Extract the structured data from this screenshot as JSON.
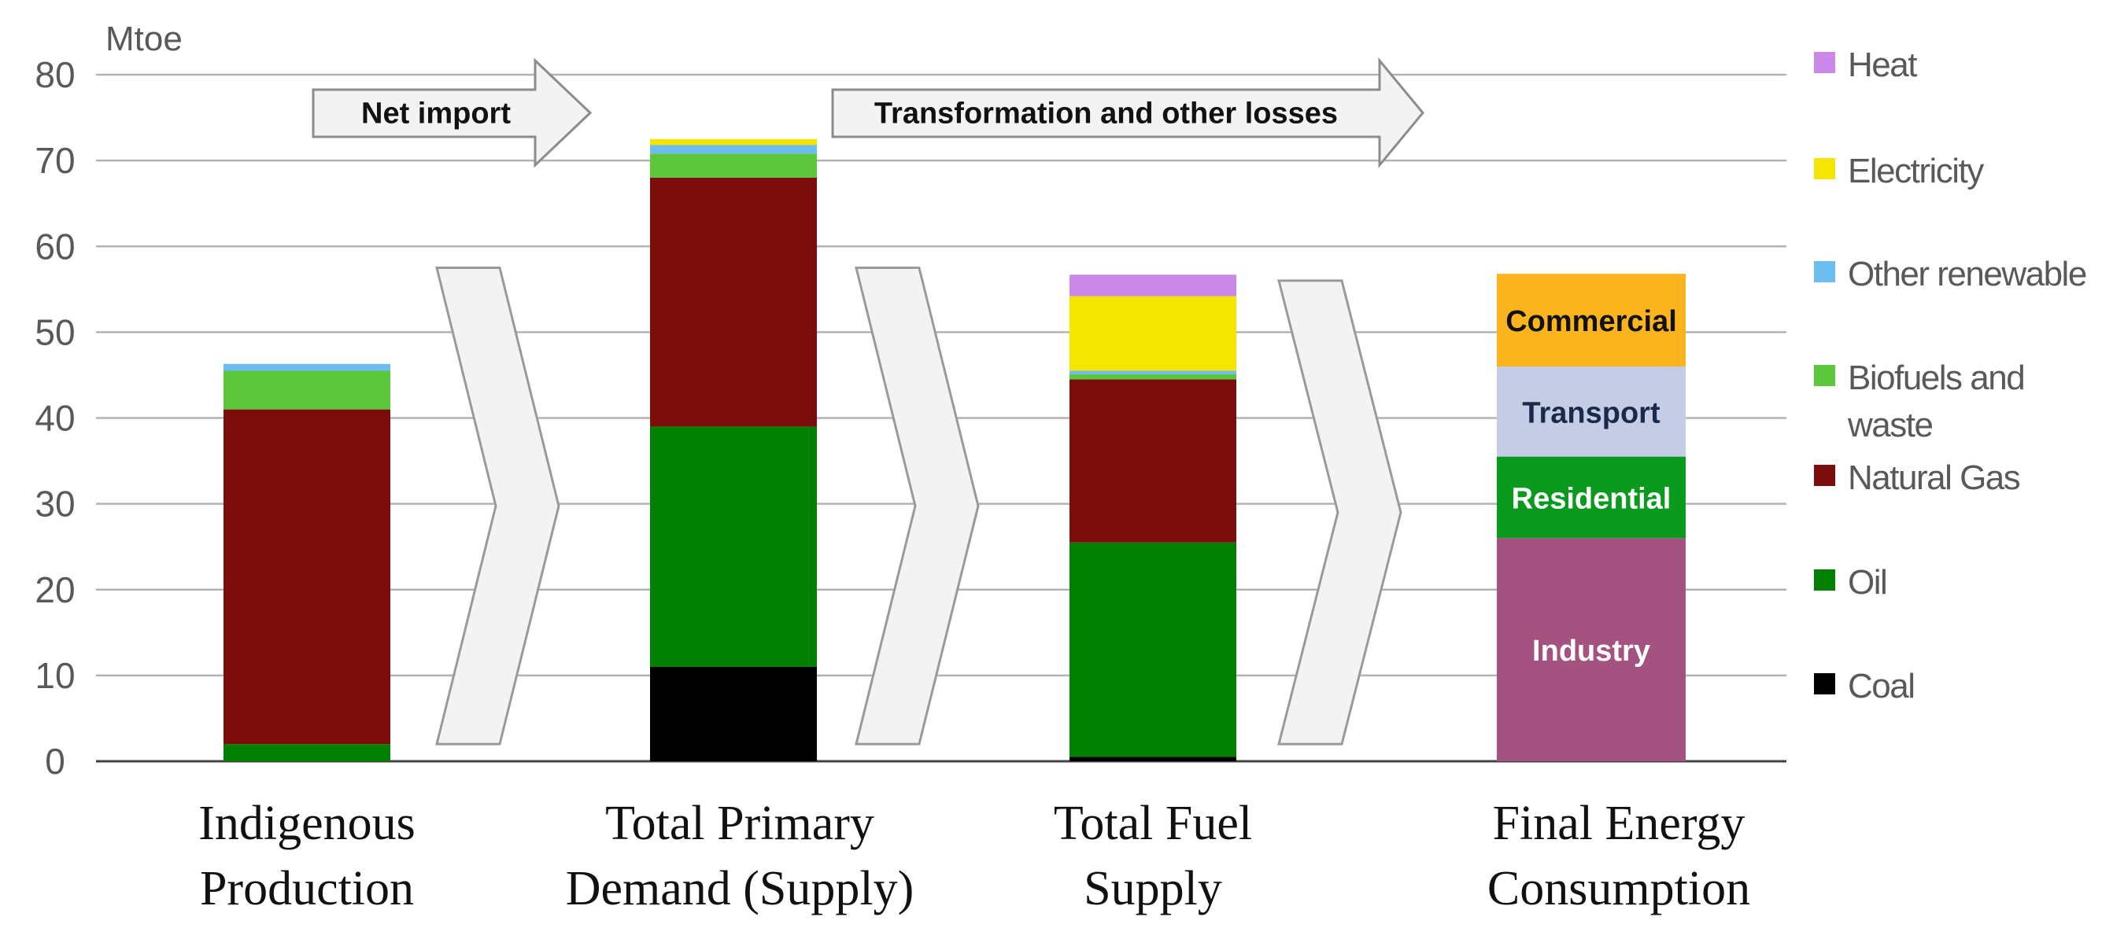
{
  "chart_data": {
    "type": "bar",
    "stacked": true,
    "unit_label": "Mtoe",
    "ylim": [
      0,
      80
    ],
    "yticks": [
      0,
      10,
      20,
      30,
      40,
      50,
      60,
      70,
      80
    ],
    "grid": true,
    "legend_position": "right",
    "categories": [
      [
        "Indigenous",
        "Production"
      ],
      [
        "Total Primary",
        "Demand (Supply)"
      ],
      [
        "Total Fuel",
        "Supply"
      ],
      [
        "Final Energy",
        "Consumption"
      ]
    ],
    "series": [
      {
        "name": "Coal",
        "color": "#000000",
        "values": [
          0,
          11,
          0.5,
          0
        ]
      },
      {
        "name": "Oil",
        "color": "#007f00",
        "values": [
          2,
          28,
          25,
          0
        ]
      },
      {
        "name": "Natural Gas",
        "color": "#7b0d0d",
        "values": [
          39,
          29,
          19,
          0
        ]
      },
      {
        "name": "Biofuels and waste",
        "color": "#5cc63d",
        "values": [
          4.5,
          2.8,
          0.6,
          0
        ]
      },
      {
        "name": "Other renewable",
        "color": "#6cbdf0",
        "values": [
          0.8,
          1,
          0.4,
          0
        ]
      },
      {
        "name": "Electricity",
        "color": "#f4e600",
        "values": [
          0,
          0.7,
          8.7,
          0
        ]
      },
      {
        "name": "Heat",
        "color": "#cc88e8",
        "values": [
          0,
          0,
          2.5,
          0
        ]
      }
    ],
    "final_consumption": [
      {
        "name": "Industry",
        "value": 26,
        "color": "#a4527f",
        "text_color": "#ffffff"
      },
      {
        "name": "Residential",
        "value": 9.5,
        "color": "#0a9a1e",
        "text_color": "#ffffff"
      },
      {
        "name": "Transport",
        "value": 10.5,
        "color": "#c4cde4",
        "text_color": "#1b2a4a"
      },
      {
        "name": "Commercial",
        "value": 10.8,
        "color": "#fcb41e",
        "text_color": "#111111"
      }
    ],
    "annotations": [
      "Net import",
      "Transformation and other losses"
    ],
    "legend": [
      "Heat",
      "Electricity",
      "Other renewable",
      [
        "Biofuels and",
        "waste"
      ],
      "Natural Gas",
      "Oil",
      "Coal"
    ]
  }
}
